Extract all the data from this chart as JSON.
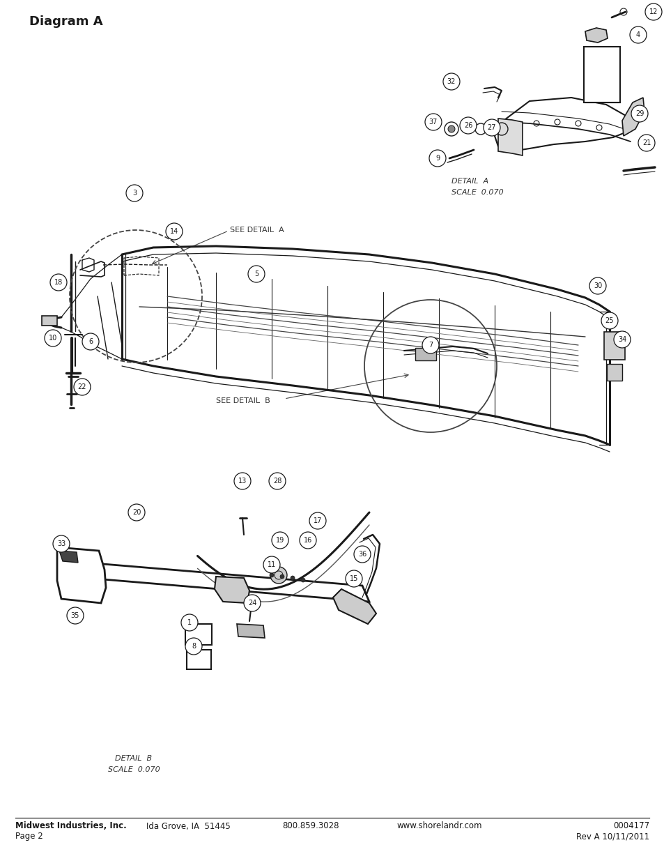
{
  "title": "Diagram A",
  "title_fontsize": 13,
  "title_bold": true,
  "bg_color": "#ffffff",
  "text_color": "#1a1a1a",
  "footer_line1_left": "Midwest Industries, Inc.",
  "footer_line1_col2": "Ida Grove, IA  51445",
  "footer_line1_col3": "800.859.3028",
  "footer_line1_col4": "www.shorelandr.com",
  "footer_line1_right": "0004177",
  "footer_line2_left": "Page 2",
  "footer_line2_right": "Rev A 10/11/2011",
  "footer_fontsize": 8.5,
  "see_detail_a": "SEE DETAIL  A",
  "see_detail_b": "SEE DETAIL  B",
  "detail_a_label": "DETAIL  A\nSCALE  0.070",
  "detail_b_label": "DETAIL  B\nSCALE  0.070",
  "lc": "#1a1a1a",
  "lw": 1.2
}
